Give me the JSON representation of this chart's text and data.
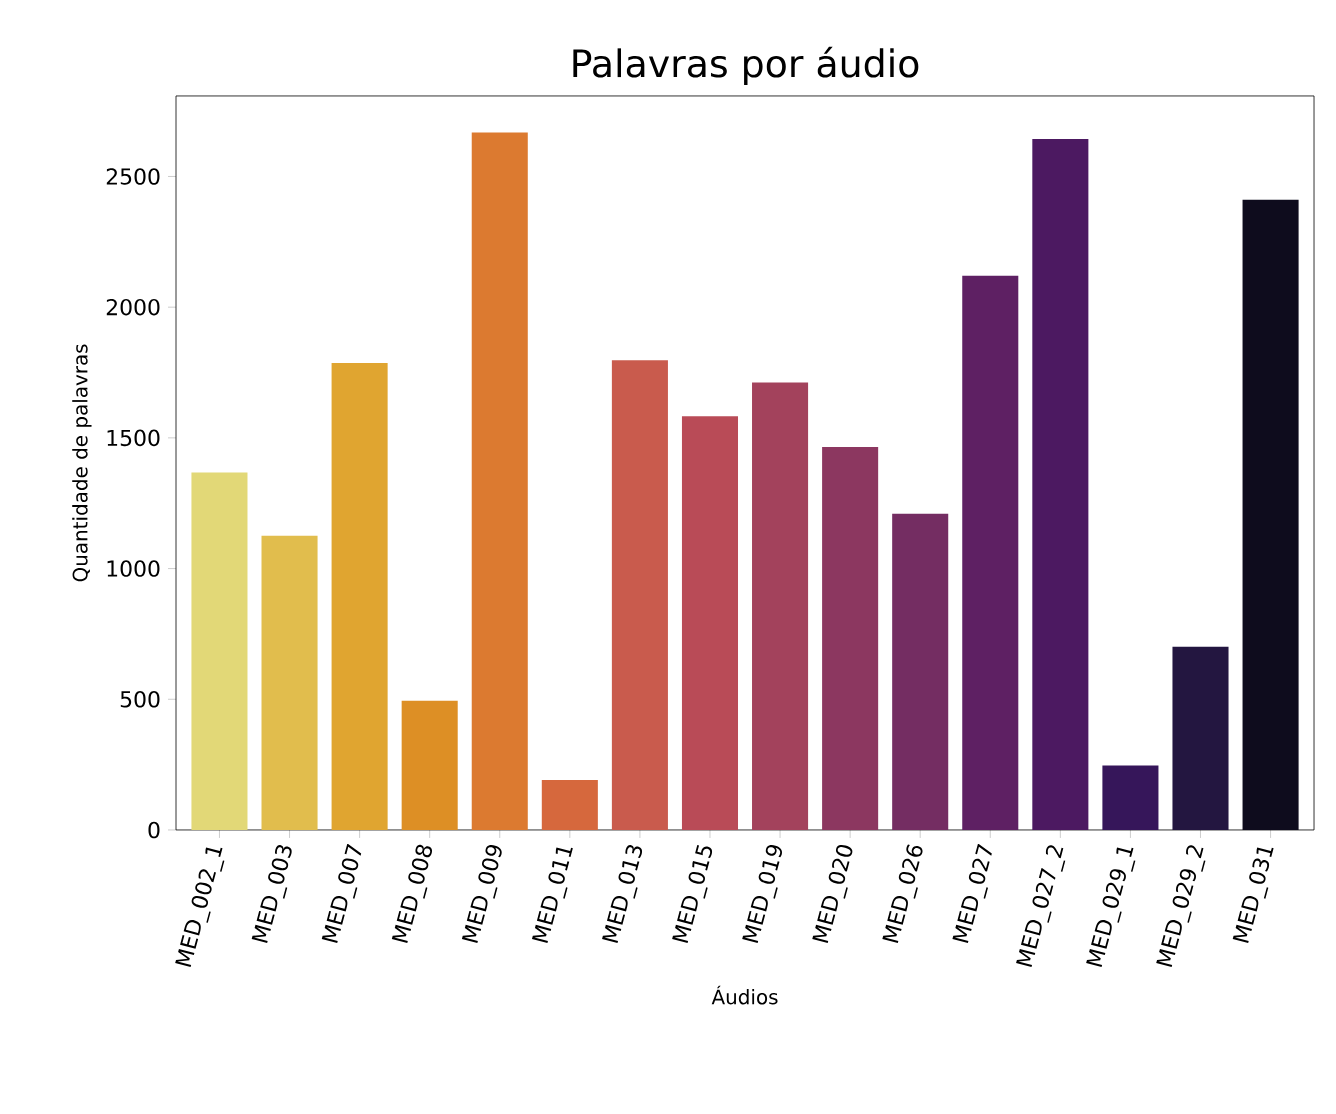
{
  "chart_data": {
    "type": "bar",
    "title": "Palavras por áudio",
    "xlabel": "Áudios",
    "ylabel": "Quantidade de palavras",
    "categories": [
      "MED_002_1",
      "MED_003",
      "MED_007",
      "MED_008",
      "MED_009",
      "MED_011",
      "MED_013",
      "MED_015",
      "MED_019",
      "MED_020",
      "MED_026",
      "MED_027",
      "MED_027_2",
      "MED_029_1",
      "MED_029_2",
      "MED_031"
    ],
    "values": [
      1368,
      1126,
      1786,
      494,
      2668,
      191,
      1797,
      1583,
      1712,
      1465,
      1210,
      2120,
      2643,
      247,
      701,
      2411
    ],
    "colors": [
      "#e2d877",
      "#e1bd4d",
      "#e0a530",
      "#dd8f25",
      "#dc7a30",
      "#d6683d",
      "#c95b4d",
      "#b94b57",
      "#a3425c",
      "#8c3760",
      "#742d62",
      "#5e2063",
      "#4c1961",
      "#36165a",
      "#231640",
      "#0e0c1d"
    ],
    "ylim": [
      0,
      2808
    ],
    "yticks": [
      0,
      500,
      1000,
      1500,
      2000,
      2500
    ]
  }
}
